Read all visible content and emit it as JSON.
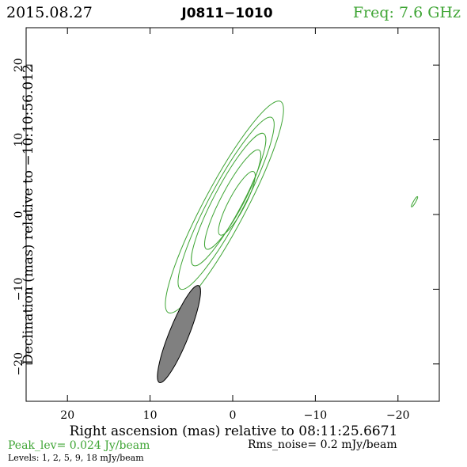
{
  "header": {
    "date": "2015.08.27",
    "source": "J0811−1010",
    "freq": "Freq: 7.6 GHz"
  },
  "colors": {
    "contour": "#3fa535",
    "beam_fill": "#808080",
    "freq_text": "#3fa535",
    "peak_text": "#3fa535"
  },
  "footer": {
    "peak": "Peak_lev=  0.024 Jy/beam",
    "rms": "Rms_noise=  0.2 mJy/beam",
    "levels": "Levels:   1,   2,   5,   9,  18 mJy/beam"
  },
  "chart_data": {
    "type": "contour",
    "xlabel": "Right ascension (mas) relative to 08:11:25.6671",
    "ylabel": "Declination (mas) relative to −10:10:56.012",
    "xlim": [
      25,
      -25
    ],
    "ylim": [
      -25,
      25
    ],
    "xticks": [
      20,
      10,
      0,
      -10,
      -20
    ],
    "yticks": [
      -20,
      -10,
      0,
      10,
      20
    ],
    "xtick_labels": [
      "20",
      "10",
      "0",
      "−10",
      "−20"
    ],
    "ytick_labels": [
      "−20",
      "−10",
      "0",
      "10",
      "20"
    ],
    "contour_levels_mJy": [
      1,
      2,
      5,
      9,
      18
    ],
    "contours": [
      {
        "level": 1,
        "center": [
          1.0,
          1.0
        ],
        "semi_major": 16.0,
        "semi_minor": 2.8,
        "pa_deg": 28
      },
      {
        "level": 2,
        "center": [
          0.8,
          1.5
        ],
        "semi_major": 13.0,
        "semi_minor": 2.3,
        "pa_deg": 28
      },
      {
        "level": 5,
        "center": [
          0.5,
          2.0
        ],
        "semi_major": 10.0,
        "semi_minor": 1.9,
        "pa_deg": 28
      },
      {
        "level": 9,
        "center": [
          0.0,
          2.0
        ],
        "semi_major": 7.5,
        "semi_minor": 1.5,
        "pa_deg": 28
      },
      {
        "level": 18,
        "center": [
          -0.5,
          1.5
        ],
        "semi_major": 4.8,
        "semi_minor": 1.1,
        "pa_deg": 28
      }
    ],
    "secondary_component": {
      "center": [
        -22.0,
        1.7
      ],
      "semi_major": 0.8,
      "semi_minor": 0.15,
      "pa_deg": 30
    },
    "beam": {
      "center": [
        6.5,
        -16.0
      ],
      "semi_major": 7.0,
      "semi_minor": 1.3,
      "pa_deg": 22
    }
  }
}
